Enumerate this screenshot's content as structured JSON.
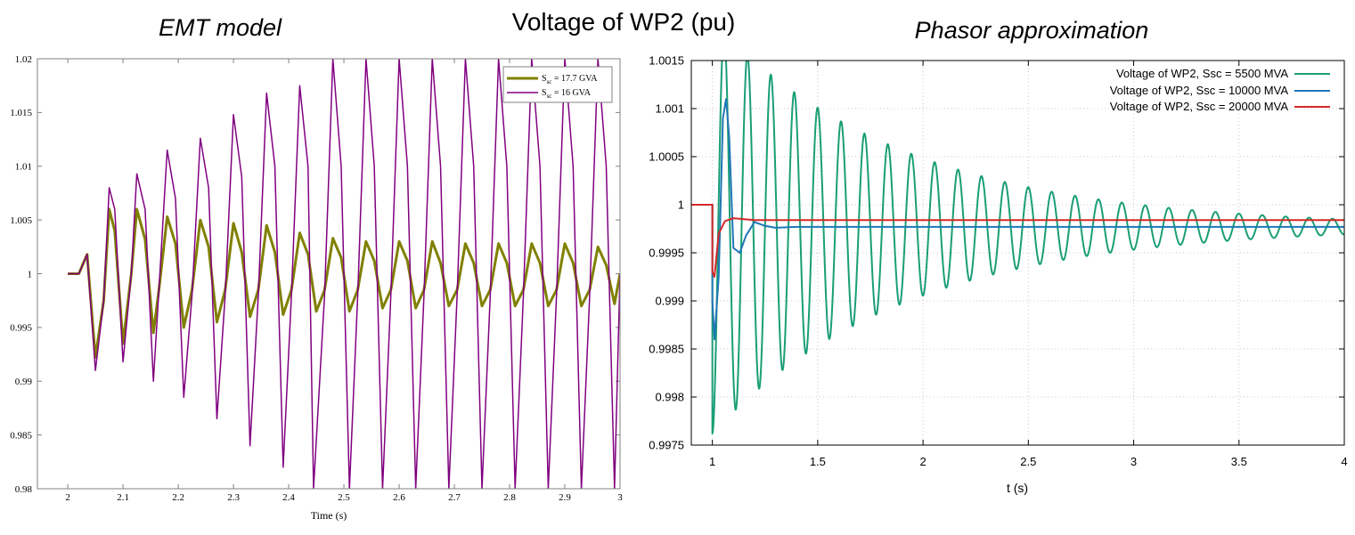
{
  "figure": {
    "main_title": "Voltage of WP2 (pu)",
    "left_heading": "EMT model",
    "right_heading": "Phasor approximation"
  },
  "colors": {
    "olive": "#808000",
    "purple": "#800080",
    "teal": "#1a9e76",
    "blue": "#1f77b4",
    "red": "#d62728",
    "frame": "#808080"
  },
  "chart_data": [
    {
      "type": "line",
      "title": "",
      "xlabel": "Time (s)",
      "ylabel": "",
      "xlim": [
        1.945,
        3.0
      ],
      "ylim": [
        0.98,
        1.02
      ],
      "xticks": [
        "2",
        "2.1",
        "2.2",
        "2.3",
        "2.4",
        "2.5",
        "2.6",
        "2.7",
        "2.8",
        "2.9",
        "3"
      ],
      "yticks": [
        "0.98",
        "0.985",
        "0.99",
        "0.995",
        "1",
        "1.005",
        "1.01",
        "1.015",
        "1.02"
      ],
      "grid": false,
      "legend_position": "top-right",
      "series": [
        {
          "name": "S_sc = 17.7 GVA",
          "legend_main": "S",
          "legend_sub": "sc",
          "legend_rest": " = 17.7 GVA",
          "color": "#808000",
          "x": [
            2.0,
            2.02,
            2.035,
            2.05,
            2.065,
            2.075,
            2.085,
            2.1,
            2.115,
            2.125,
            2.14,
            2.155,
            2.165,
            2.18,
            2.195,
            2.21,
            2.225,
            2.24,
            2.255,
            2.27,
            2.285,
            2.3,
            2.315,
            2.33,
            2.345,
            2.36,
            2.375,
            2.39,
            2.405,
            2.42,
            2.435,
            2.45,
            2.465,
            2.48,
            2.495,
            2.51,
            2.525,
            2.54,
            2.555,
            2.57,
            2.585,
            2.6,
            2.615,
            2.63,
            2.645,
            2.66,
            2.675,
            2.69,
            2.705,
            2.72,
            2.735,
            2.75,
            2.765,
            2.78,
            2.795,
            2.81,
            2.825,
            2.84,
            2.855,
            2.87,
            2.885,
            2.9,
            2.915,
            2.93,
            2.945,
            2.96,
            2.975,
            2.99,
            3.0
          ],
          "y": [
            1.0,
            1.0,
            1.0018,
            0.9922,
            0.9975,
            1.006,
            1.004,
            0.9935,
            1.0,
            1.006,
            1.0032,
            0.9945,
            0.9985,
            1.0053,
            1.0028,
            0.995,
            0.9985,
            1.005,
            1.0025,
            0.9955,
            0.9985,
            1.0047,
            1.002,
            0.996,
            0.9985,
            1.0045,
            1.002,
            0.9962,
            0.9985,
            1.0038,
            1.0018,
            0.9965,
            0.9985,
            1.0033,
            1.0015,
            0.9965,
            0.9985,
            1.003,
            1.0012,
            0.9968,
            0.9985,
            1.003,
            1.0012,
            0.9968,
            0.9985,
            1.003,
            1.001,
            0.997,
            0.9985,
            1.0028,
            1.001,
            0.997,
            0.9985,
            1.0028,
            1.001,
            0.997,
            0.9985,
            1.0028,
            1.001,
            0.997,
            0.9985,
            1.0028,
            1.001,
            0.997,
            0.9985,
            1.0025,
            1.0008,
            0.9972,
            1.0
          ]
        },
        {
          "name": "S_sc = 16 GVA",
          "legend_main": "S",
          "legend_sub": "sc",
          "legend_rest": " = 16 GVA",
          "color": "#800080",
          "x": [
            2.0,
            2.02,
            2.035,
            2.05,
            2.065,
            2.075,
            2.085,
            2.1,
            2.115,
            2.125,
            2.14,
            2.155,
            2.165,
            2.18,
            2.195,
            2.21,
            2.225,
            2.24,
            2.255,
            2.27,
            2.285,
            2.3,
            2.315,
            2.33,
            2.345,
            2.36,
            2.375,
            2.39,
            2.405,
            2.42,
            2.435,
            2.445,
            2.465,
            2.48,
            2.495,
            2.51,
            2.525,
            2.54,
            2.555,
            2.57,
            2.585,
            2.6,
            2.615,
            2.63,
            2.645,
            2.66,
            2.675,
            2.69,
            2.705,
            2.72,
            2.735,
            2.75,
            2.765,
            2.78,
            2.795,
            2.81,
            2.825,
            2.84,
            2.855,
            2.87,
            2.885,
            2.9,
            2.915,
            2.93,
            2.945,
            2.96,
            2.975,
            2.99,
            3.0
          ],
          "y": [
            1.0,
            1.0,
            1.0018,
            0.991,
            0.9975,
            1.008,
            1.006,
            0.9918,
            1.0,
            1.0093,
            1.006,
            0.99,
            0.9985,
            1.0115,
            1.007,
            0.9885,
            0.998,
            1.0126,
            1.008,
            0.9865,
            0.998,
            1.0148,
            1.009,
            0.984,
            0.998,
            1.0168,
            1.01,
            0.982,
            0.998,
            1.0175,
            1.01,
            0.98,
            0.998,
            1.02,
            1.01,
            0.98,
            0.998,
            1.02,
            1.01,
            0.98,
            0.998,
            1.02,
            1.01,
            0.98,
            0.998,
            1.02,
            1.01,
            0.98,
            0.998,
            1.02,
            1.01,
            0.98,
            0.998,
            1.02,
            1.01,
            0.98,
            0.998,
            1.02,
            1.01,
            0.98,
            0.998,
            1.02,
            1.01,
            0.98,
            0.998,
            1.02,
            1.01,
            0.98,
            1.0
          ]
        }
      ]
    },
    {
      "type": "line",
      "title": "",
      "xlabel": "t (s)",
      "ylabel": "",
      "xlim": [
        0.9,
        4.0
      ],
      "ylim": [
        0.9975,
        1.0015
      ],
      "xticks": [
        "1",
        "1.5",
        "2",
        "2.5",
        "3",
        "3.5",
        "4"
      ],
      "yticks": [
        "0.9975",
        "0.998",
        "0.9985",
        "0.999",
        "0.9995",
        "1",
        "1.0005",
        "1.001",
        "1.0015"
      ],
      "grid": true,
      "legend_position": "top-right",
      "series": [
        {
          "name": "Voltage of WP2, Ssc = 5500 MVA",
          "color": "#1a9e76",
          "step_at": 1.0,
          "final": 0.99977,
          "amplitude": 0.00215,
          "decay": 1.1,
          "period": 0.1111
        },
        {
          "name": "Voltage of WP2, Ssc = 10000 MVA",
          "color": "#1f77b4",
          "x": [
            0.9,
            1.0,
            1.0,
            1.01,
            1.03,
            1.05,
            1.065,
            1.08,
            1.1,
            1.13,
            1.16,
            1.2,
            1.25,
            1.3,
            1.4,
            4.0
          ],
          "y": [
            1.0,
            1.0,
            0.999,
            0.9986,
            0.99925,
            1.0009,
            1.0011,
            1.0007,
            0.99955,
            0.9995,
            0.99968,
            0.99982,
            0.99978,
            0.99976,
            0.99977,
            0.99977
          ]
        },
        {
          "name": "Voltage of WP2, Ssc = 20000 MVA",
          "color": "#d62728",
          "x": [
            0.9,
            1.0,
            1.0,
            1.01,
            1.03,
            1.06,
            1.1,
            1.15,
            1.2,
            4.0
          ],
          "y": [
            1.0,
            1.0,
            0.9993,
            0.99925,
            0.9997,
            0.99983,
            0.99986,
            0.99985,
            0.99984,
            0.99984
          ]
        }
      ]
    }
  ]
}
